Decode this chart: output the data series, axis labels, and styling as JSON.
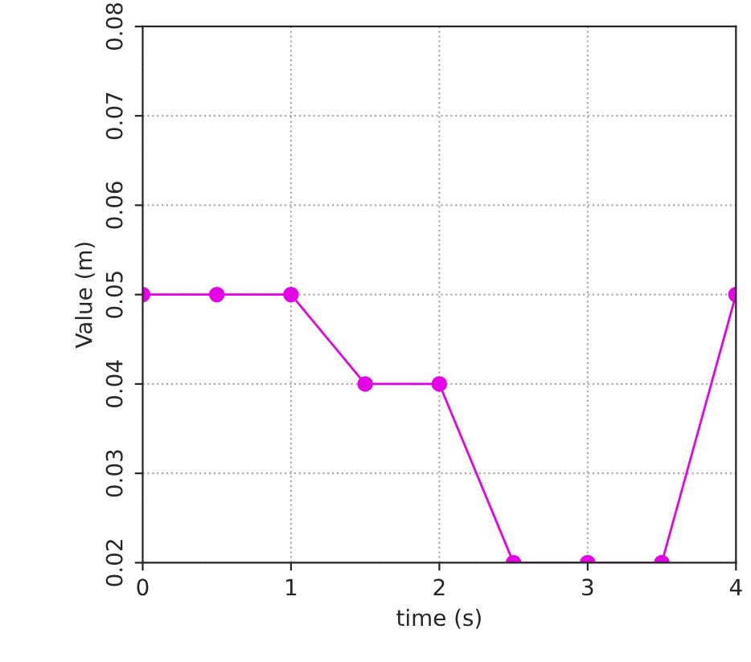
{
  "chart_data": {
    "type": "line",
    "xlabel": "time (s)",
    "ylabel": "Value (m)",
    "x": [
      0,
      0.5,
      1,
      1.5,
      2,
      2.5,
      3,
      3.5,
      4
    ],
    "series": [
      {
        "color": "#e600e6",
        "values": [
          0.05,
          0.05,
          0.05,
          0.04,
          0.04,
          0.02,
          0.02,
          0.02,
          0.05
        ]
      }
    ],
    "xlim": [
      0,
      4
    ],
    "ylim": [
      0.02,
      0.08
    ],
    "xticks": [
      0,
      1,
      2,
      3,
      4
    ],
    "yticks": [
      {
        "value": 0.02,
        "label": "0.02"
      },
      {
        "value": 0.03,
        "label": "0.03"
      },
      {
        "value": 0.04,
        "label": "0.04"
      },
      {
        "value": 0.05,
        "label": "0.05"
      },
      {
        "value": 0.06,
        "label": "0.06"
      },
      {
        "value": 0.07,
        "label": "0.07"
      },
      {
        "value": 0.08,
        "label": "0.08"
      }
    ],
    "grid": true,
    "marker": "circle",
    "line_style": "solid"
  }
}
